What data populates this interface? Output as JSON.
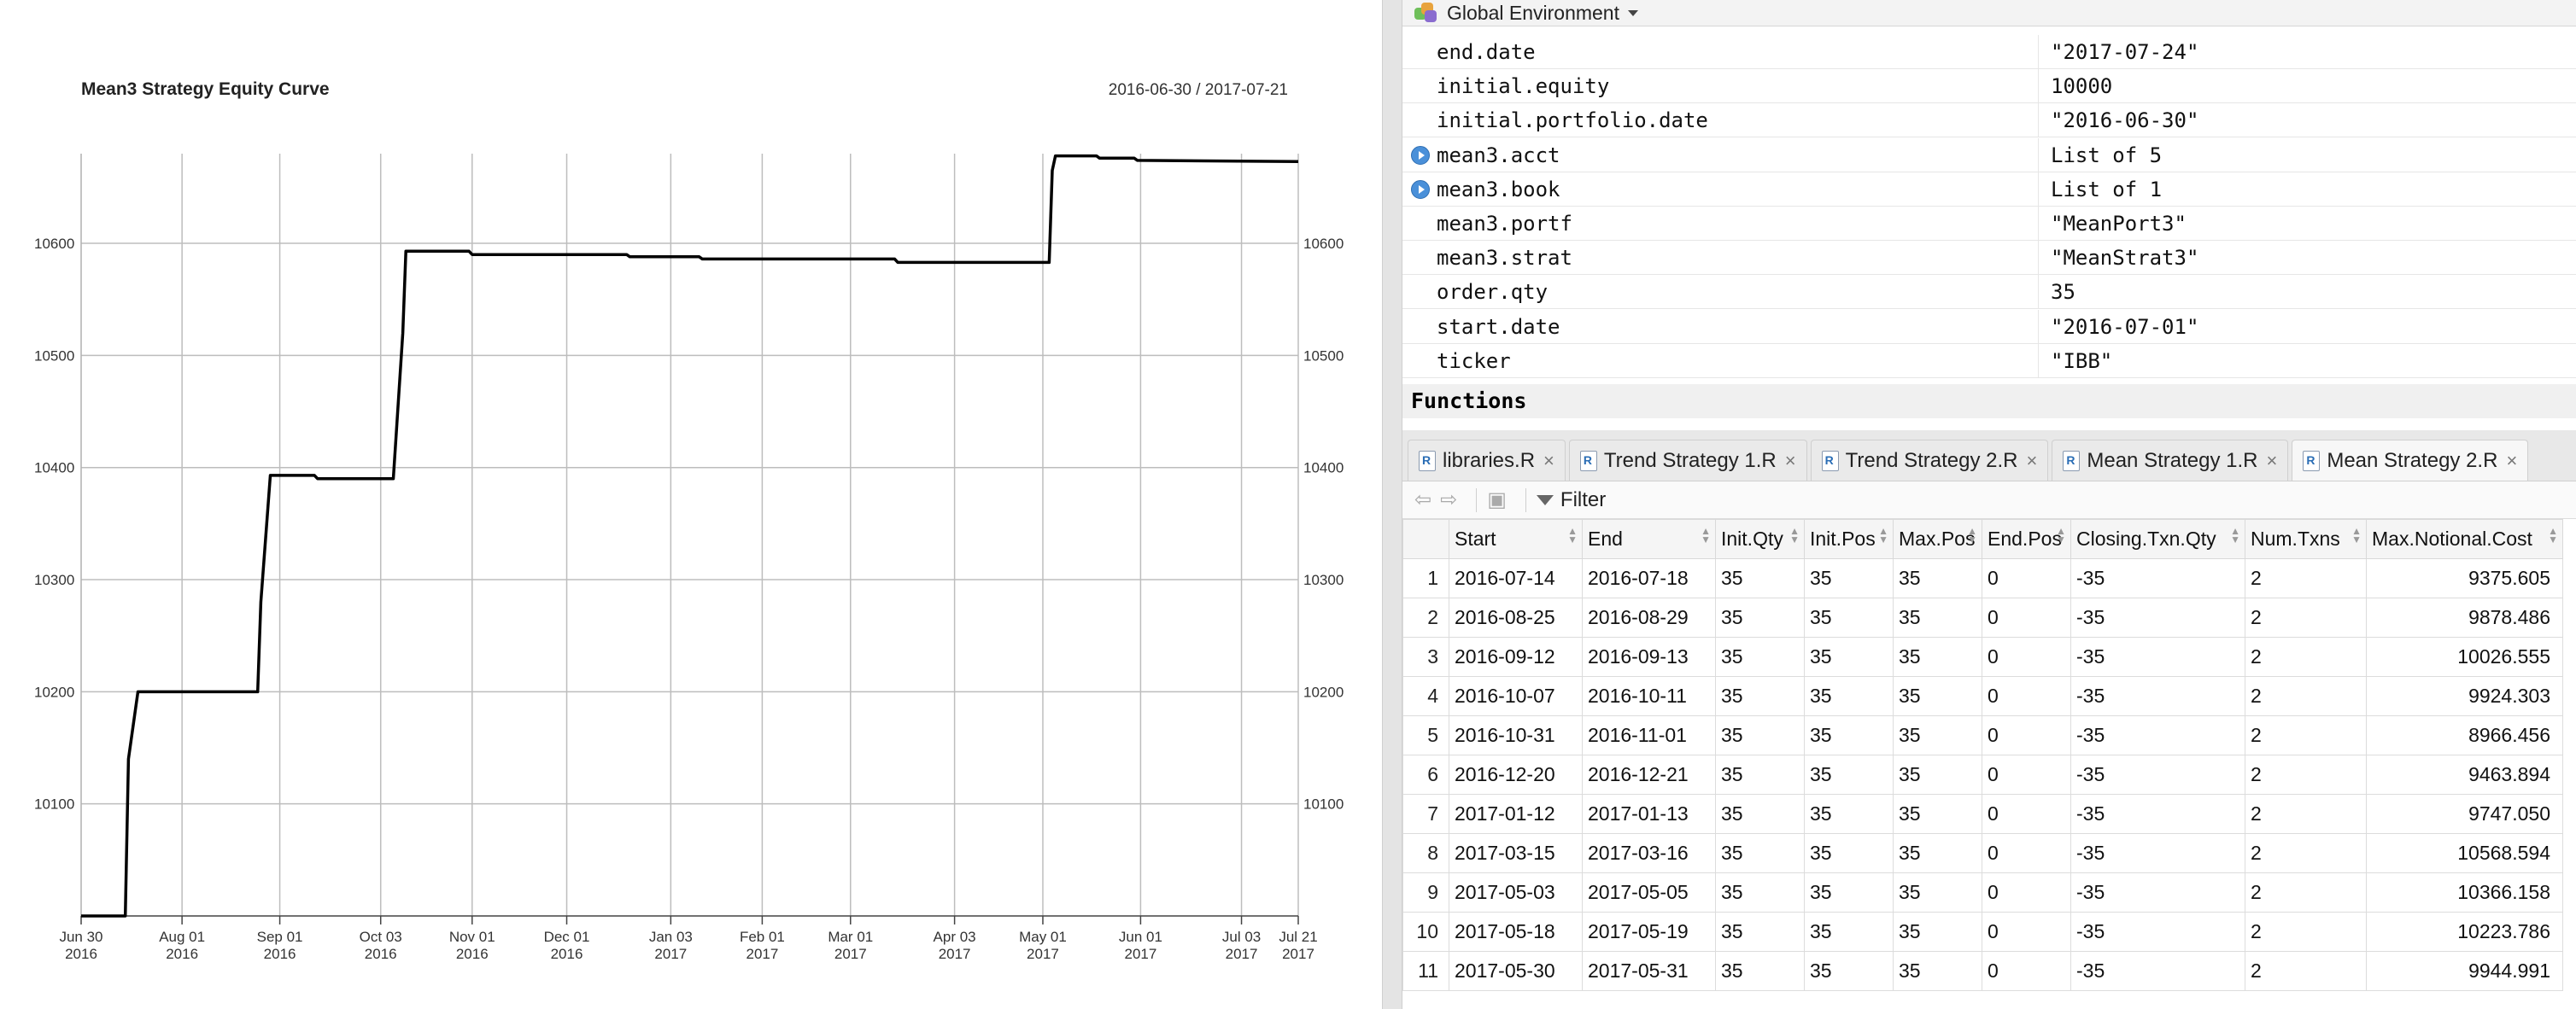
{
  "chart_data": {
    "type": "line",
    "title": "Mean3 Strategy Equity Curve",
    "date_range": "2016-06-30 / 2017-07-21",
    "x_tick_labels": [
      {
        "date": "2016-06-30",
        "l1": "Jun 30",
        "l2": "2016"
      },
      {
        "date": "2016-08-01",
        "l1": "Aug 01",
        "l2": "2016"
      },
      {
        "date": "2016-09-01",
        "l1": "Sep 01",
        "l2": "2016"
      },
      {
        "date": "2016-10-03",
        "l1": "Oct 03",
        "l2": "2016"
      },
      {
        "date": "2016-11-01",
        "l1": "Nov 01",
        "l2": "2016"
      },
      {
        "date": "2016-12-01",
        "l1": "Dec 01",
        "l2": "2016"
      },
      {
        "date": "2017-01-03",
        "l1": "Jan 03",
        "l2": "2017"
      },
      {
        "date": "2017-02-01",
        "l1": "Feb 01",
        "l2": "2017"
      },
      {
        "date": "2017-03-01",
        "l1": "Mar 01",
        "l2": "2017"
      },
      {
        "date": "2017-04-03",
        "l1": "Apr 03",
        "l2": "2017"
      },
      {
        "date": "2017-05-01",
        "l1": "May 01",
        "l2": "2017"
      },
      {
        "date": "2017-06-01",
        "l1": "Jun 01",
        "l2": "2017"
      },
      {
        "date": "2017-07-03",
        "l1": "Jul 03",
        "l2": "2017"
      },
      {
        "date": "2017-07-21",
        "l1": "Jul 21",
        "l2": "2017"
      }
    ],
    "y_ticks": [
      10100,
      10200,
      10300,
      10400,
      10500,
      10600
    ],
    "ylim": [
      10000,
      10680
    ],
    "grid": true,
    "series": [
      {
        "x": [
          "2016-06-30",
          "2016-07-14",
          "2016-07-15",
          "2016-07-18",
          "2016-08-25",
          "2016-08-26",
          "2016-08-29",
          "2016-09-12",
          "2016-09-13",
          "2016-10-07",
          "2016-10-10",
          "2016-10-11",
          "2016-10-31",
          "2016-11-01",
          "2016-12-20",
          "2016-12-21",
          "2017-01-12",
          "2017-01-13",
          "2017-03-15",
          "2017-03-16",
          "2017-05-03",
          "2017-05-04",
          "2017-05-05",
          "2017-05-18",
          "2017-05-19",
          "2017-05-30",
          "2017-05-31",
          "2017-07-21"
        ],
        "y": [
          10000,
          10000,
          10140,
          10200,
          10200,
          10280,
          10393,
          10393,
          10390,
          10390,
          10520,
          10593,
          10593,
          10590,
          10590,
          10588,
          10588,
          10586,
          10586,
          10583,
          10583,
          10665,
          10678,
          10678,
          10676,
          10676,
          10674,
          10673
        ]
      }
    ]
  },
  "environment": {
    "title": "Global Environment",
    "rows": [
      {
        "name": "end.date",
        "value": "\"2017-07-24\"",
        "expandable": false
      },
      {
        "name": "initial.equity",
        "value": "10000",
        "expandable": false
      },
      {
        "name": "initial.portfolio.date",
        "value": "\"2016-06-30\"",
        "expandable": false
      },
      {
        "name": "mean3.acct",
        "value": "List of 5",
        "expandable": true
      },
      {
        "name": "mean3.book",
        "value": "List of 1",
        "expandable": true
      },
      {
        "name": "mean3.portf",
        "value": "\"MeanPort3\"",
        "expandable": false
      },
      {
        "name": "mean3.strat",
        "value": "\"MeanStrat3\"",
        "expandable": false
      },
      {
        "name": "order.qty",
        "value": "35",
        "expandable": false
      },
      {
        "name": "start.date",
        "value": "\"2016-07-01\"",
        "expandable": false
      },
      {
        "name": "ticker",
        "value": "\"IBB\"",
        "expandable": false
      }
    ],
    "section": "Functions"
  },
  "editor": {
    "tabs": [
      {
        "label": "libraries.R"
      },
      {
        "label": "Trend Strategy 1.R"
      },
      {
        "label": "Trend Strategy 2.R"
      },
      {
        "label": "Mean Strategy 1.R"
      },
      {
        "label": "Mean Strategy 2.R"
      }
    ],
    "filter_label": "Filter"
  },
  "table": {
    "columns": [
      "Start",
      "End",
      "Init.Qty",
      "Init.Pos",
      "Max.Pos",
      "End.Pos",
      "Closing.Txn.Qty",
      "Num.Txns",
      "Max.Notional.Cost"
    ],
    "rows": [
      [
        "1",
        "2016-07-14",
        "2016-07-18",
        "35",
        "35",
        "35",
        "0",
        "-35",
        "2",
        "9375.605"
      ],
      [
        "2",
        "2016-08-25",
        "2016-08-29",
        "35",
        "35",
        "35",
        "0",
        "-35",
        "2",
        "9878.486"
      ],
      [
        "3",
        "2016-09-12",
        "2016-09-13",
        "35",
        "35",
        "35",
        "0",
        "-35",
        "2",
        "10026.555"
      ],
      [
        "4",
        "2016-10-07",
        "2016-10-11",
        "35",
        "35",
        "35",
        "0",
        "-35",
        "2",
        "9924.303"
      ],
      [
        "5",
        "2016-10-31",
        "2016-11-01",
        "35",
        "35",
        "35",
        "0",
        "-35",
        "2",
        "8966.456"
      ],
      [
        "6",
        "2016-12-20",
        "2016-12-21",
        "35",
        "35",
        "35",
        "0",
        "-35",
        "2",
        "9463.894"
      ],
      [
        "7",
        "2017-01-12",
        "2017-01-13",
        "35",
        "35",
        "35",
        "0",
        "-35",
        "2",
        "9747.050"
      ],
      [
        "8",
        "2017-03-15",
        "2017-03-16",
        "35",
        "35",
        "35",
        "0",
        "-35",
        "2",
        "10568.594"
      ],
      [
        "9",
        "2017-05-03",
        "2017-05-05",
        "35",
        "35",
        "35",
        "0",
        "-35",
        "2",
        "10366.158"
      ],
      [
        "10",
        "2017-05-18",
        "2017-05-19",
        "35",
        "35",
        "35",
        "0",
        "-35",
        "2",
        "10223.786"
      ],
      [
        "11",
        "2017-05-30",
        "2017-05-31",
        "35",
        "35",
        "35",
        "0",
        "-35",
        "2",
        "9944.991"
      ]
    ]
  }
}
